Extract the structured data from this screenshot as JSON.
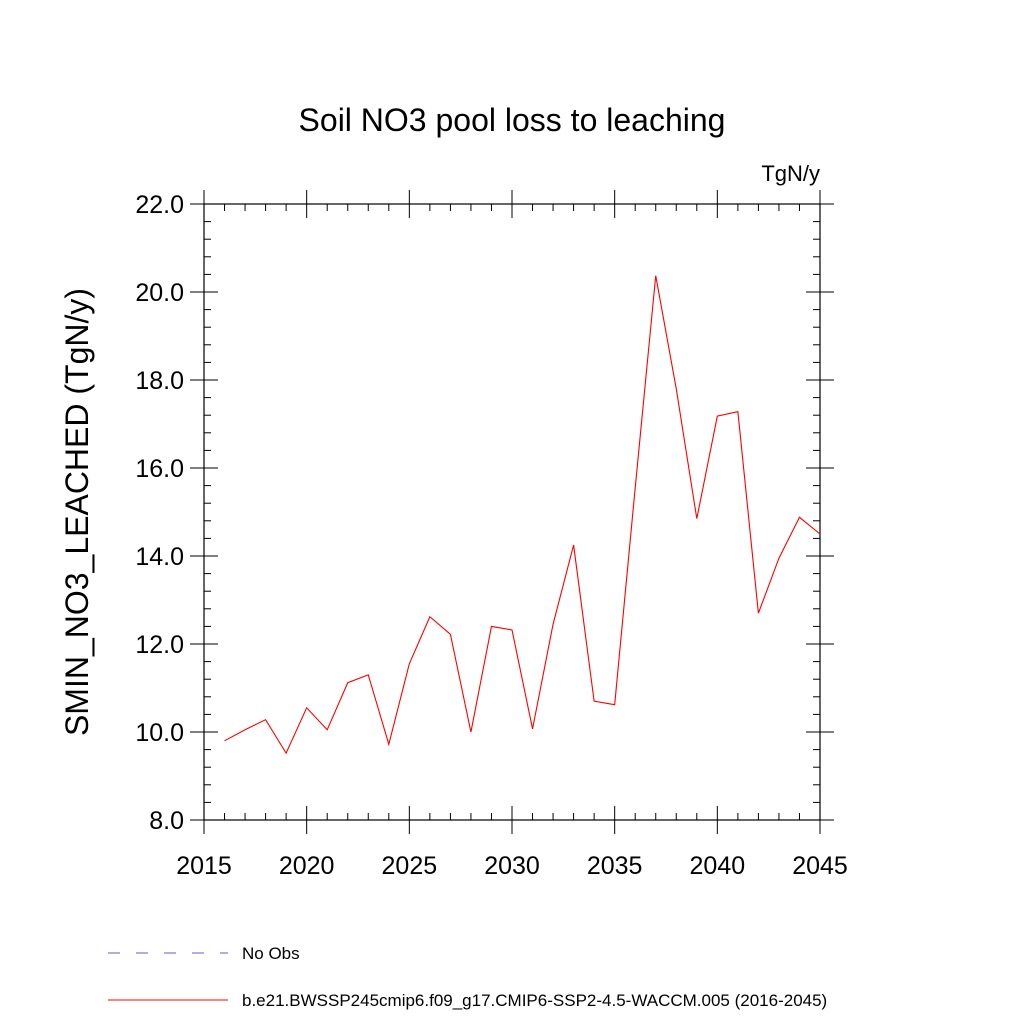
{
  "chart_data": {
    "type": "line",
    "title": "Soil NO3 pool loss to leaching",
    "units_label": "TgN/y",
    "ylabel": "SMIN_NO3_LEACHED  (TgN/y)",
    "xlabel": "",
    "xlim": [
      2015,
      2045
    ],
    "ylim": [
      8.0,
      22.0
    ],
    "x_ticks": [
      2015,
      2020,
      2025,
      2030,
      2035,
      2040,
      2045
    ],
    "x_tick_labels": [
      "2015",
      "2020",
      "2025",
      "2030",
      "2035",
      "2040",
      "2045"
    ],
    "y_ticks": [
      8,
      10,
      12,
      14,
      16,
      18,
      20,
      22
    ],
    "y_tick_labels": [
      "8.0",
      "10.0",
      "12.0",
      "14.0",
      "16.0",
      "18.0",
      "20.0",
      "22.0"
    ],
    "grid": false,
    "series": [
      {
        "name": "b.e21.BWSSP245cmip6.f09_g17.CMIP6-SSP2-4.5-WACCM.005 (2016-2045)",
        "color": "#ff0000",
        "x": [
          2016,
          2017,
          2018,
          2019,
          2020,
          2021,
          2022,
          2023,
          2024,
          2025,
          2026,
          2027,
          2028,
          2029,
          2030,
          2031,
          2032,
          2033,
          2034,
          2035,
          2036,
          2037,
          2038,
          2039,
          2040,
          2041,
          2042,
          2043,
          2044,
          2045
        ],
        "y": [
          9.8,
          10.05,
          10.28,
          9.52,
          10.55,
          10.05,
          11.12,
          11.3,
          9.72,
          11.55,
          12.62,
          12.22,
          10.0,
          12.4,
          12.32,
          10.07,
          12.45,
          14.25,
          10.7,
          10.62,
          15.55,
          20.37,
          17.8,
          14.85,
          17.18,
          17.28,
          12.7,
          13.95,
          14.88,
          14.5
        ]
      }
    ],
    "legend": {
      "placement": "bottom-left",
      "entries": [
        {
          "label": "No Obs",
          "color": "#6a5acd",
          "style": "dashed"
        },
        {
          "label": "b.e21.BWSSP245cmip6.f09_g17.CMIP6-SSP2-4.5-WACCM.005 (2016-2045)",
          "color": "#ff0000",
          "style": "solid"
        }
      ]
    }
  }
}
